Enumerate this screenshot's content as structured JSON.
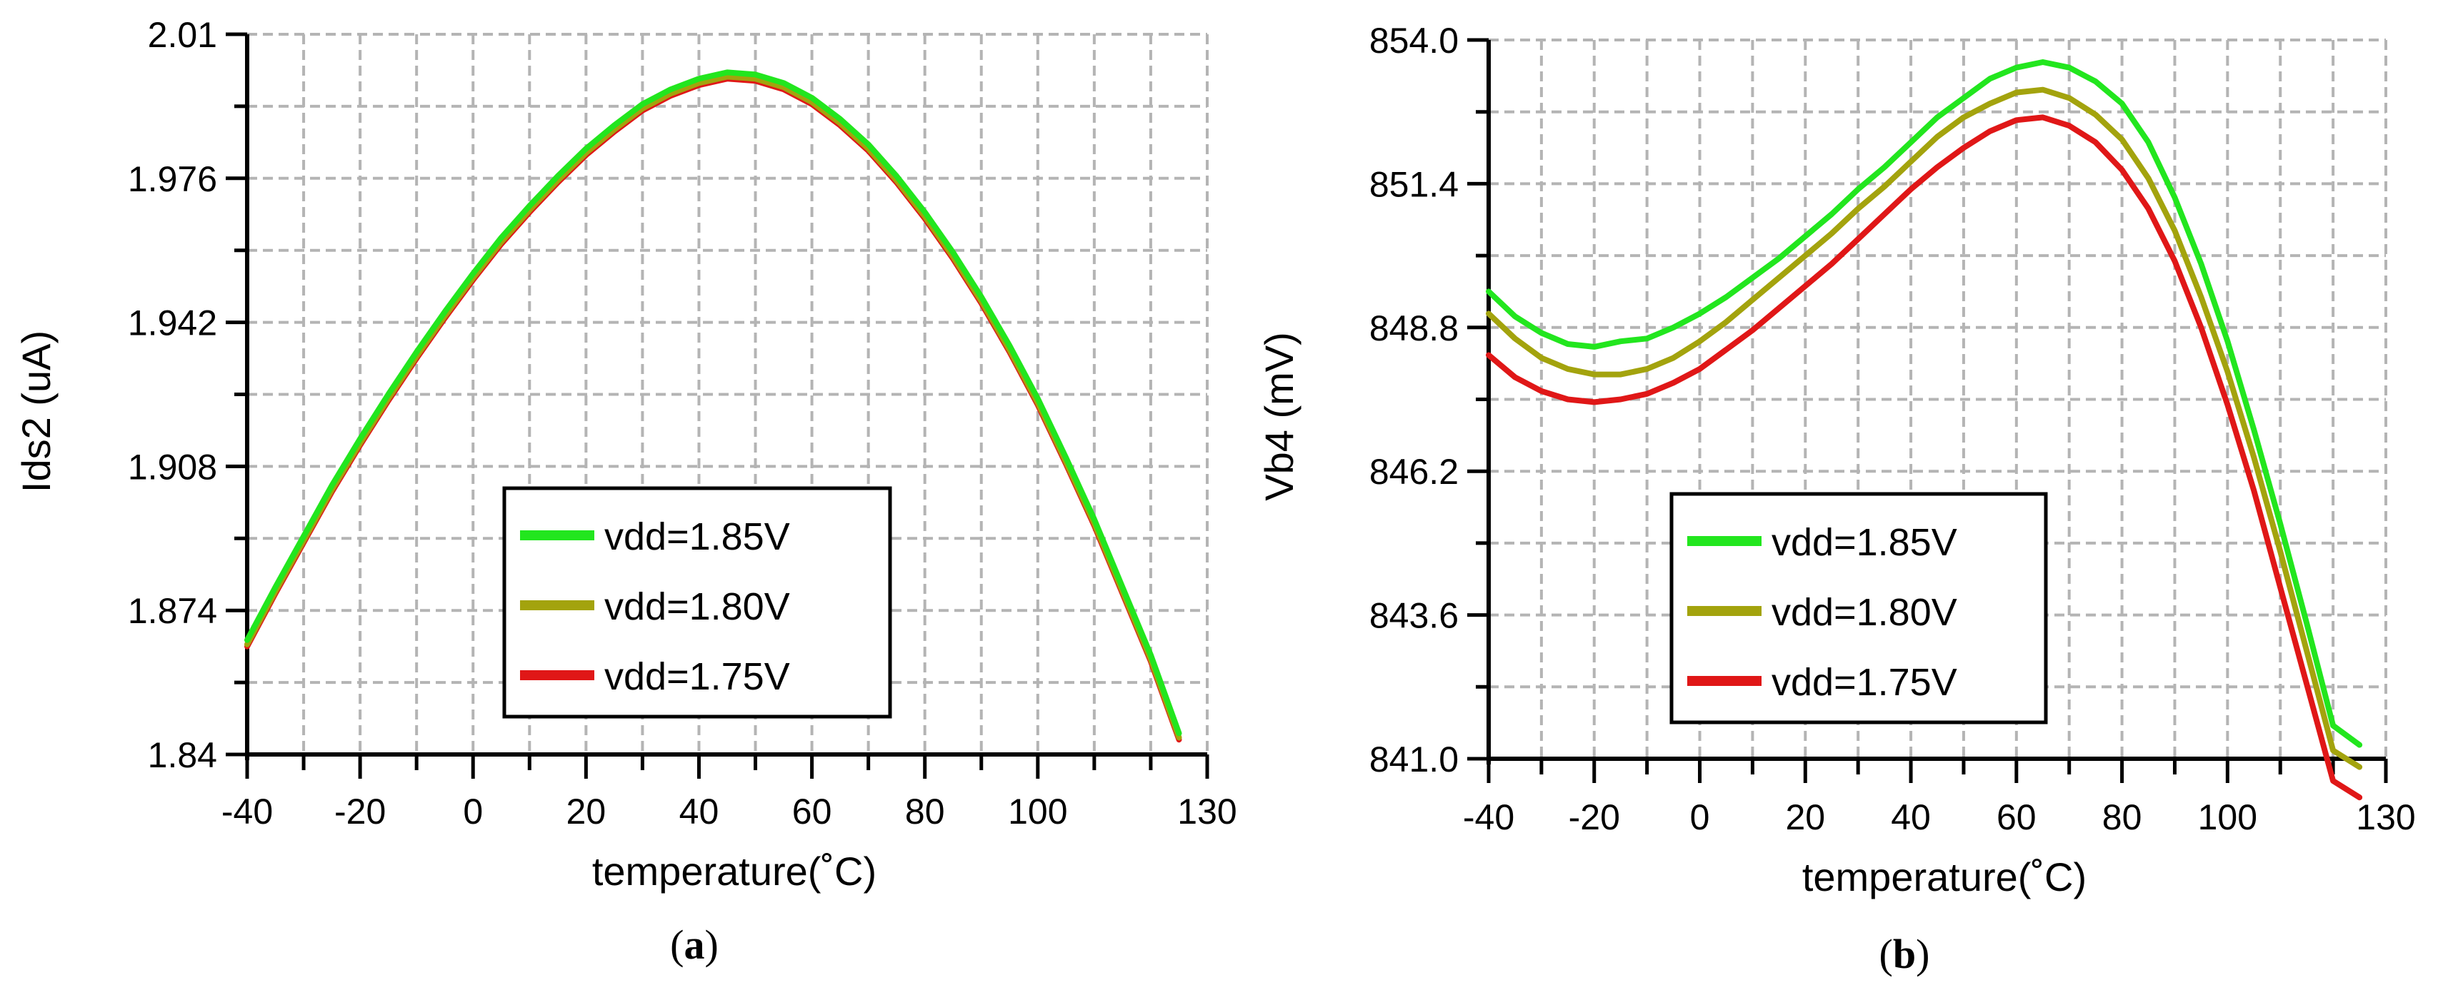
{
  "chart_data": [
    {
      "type": "line",
      "caption": {
        "open": "(",
        "letter": "a",
        "close": ")"
      },
      "xlabel": "temperature(˚C)",
      "ylabel": "Ids2 (uA)",
      "xlim": [
        -40,
        130
      ],
      "ylim": [
        1.84,
        2.01
      ],
      "x_ticks": [
        "-40",
        "-20",
        "0",
        "20",
        "40",
        "60",
        "80",
        "100",
        "130"
      ],
      "x_tick_values": [
        -40,
        -20,
        0,
        20,
        40,
        60,
        80,
        100,
        130
      ],
      "y_ticks": [
        "1.84",
        "1.874",
        "1.908",
        "1.942",
        "1.976",
        "2.01"
      ],
      "y_tick_values": [
        1.84,
        1.874,
        1.908,
        1.942,
        1.976,
        2.01
      ],
      "grid": true,
      "legend_position": "lower-center",
      "x": [
        -40,
        -35,
        -30,
        -25,
        -20,
        -15,
        -10,
        -5,
        0,
        5,
        10,
        15,
        20,
        25,
        30,
        35,
        40,
        45,
        50,
        55,
        60,
        65,
        70,
        75,
        80,
        85,
        90,
        95,
        100,
        105,
        110,
        115,
        120,
        125
      ],
      "series": [
        {
          "name": "vdd=1.85V",
          "color": "#22e61e",
          "values": [
            1.867,
            1.8795,
            1.8915,
            1.9035,
            1.9145,
            1.925,
            1.935,
            1.9445,
            1.9535,
            1.962,
            1.9695,
            1.9765,
            1.983,
            1.9885,
            1.9935,
            1.997,
            1.9995,
            2.001,
            2.0005,
            1.9985,
            1.995,
            1.99,
            1.984,
            1.9765,
            1.968,
            1.9585,
            1.948,
            1.9365,
            1.924,
            1.91,
            1.8955,
            1.8795,
            1.8635,
            1.845
          ]
        },
        {
          "name": "vdd=1.80V",
          "color": "#a3a30d",
          "values": [
            1.866,
            1.8785,
            1.8905,
            1.9025,
            1.9135,
            1.924,
            1.934,
            1.9435,
            1.9525,
            1.961,
            1.9685,
            1.9755,
            1.982,
            1.9875,
            1.9925,
            1.996,
            1.9985,
            2.0,
            1.9995,
            1.9975,
            1.994,
            1.989,
            1.983,
            1.9755,
            1.967,
            1.9575,
            1.947,
            1.9355,
            1.923,
            1.909,
            1.8945,
            1.8785,
            1.8625,
            1.844
          ]
        },
        {
          "name": "vdd=1.75V",
          "color": "#e01717",
          "values": [
            1.8655,
            1.878,
            1.89,
            1.902,
            1.913,
            1.9235,
            1.9335,
            1.943,
            1.952,
            1.9605,
            1.968,
            1.975,
            1.9815,
            1.987,
            1.992,
            1.9955,
            1.998,
            1.9995,
            1.999,
            1.997,
            1.9935,
            1.9885,
            1.9825,
            1.975,
            1.9665,
            1.957,
            1.9465,
            1.935,
            1.9225,
            1.9085,
            1.894,
            1.878,
            1.862,
            1.8435
          ]
        }
      ]
    },
    {
      "type": "line",
      "caption": {
        "open": "(",
        "letter": "b",
        "close": ")"
      },
      "xlabel": "temperature(˚C)",
      "ylabel": "Vb4 (mV)",
      "xlim": [
        -40,
        130
      ],
      "ylim": [
        841.0,
        854.0
      ],
      "x_ticks": [
        "-40",
        "-20",
        "0",
        "20",
        "40",
        "60",
        "80",
        "100",
        "130"
      ],
      "x_tick_values": [
        -40,
        -20,
        0,
        20,
        40,
        60,
        80,
        100,
        130
      ],
      "y_ticks": [
        "841.0",
        "843.6",
        "846.2",
        "848.8",
        "851.4",
        "854.0"
      ],
      "y_tick_values": [
        841.0,
        843.6,
        846.2,
        848.8,
        851.4,
        854.0
      ],
      "grid": true,
      "legend_position": "lower-center",
      "x": [
        -40,
        -35,
        -30,
        -25,
        -20,
        -15,
        -10,
        -5,
        0,
        5,
        10,
        15,
        20,
        25,
        30,
        35,
        40,
        45,
        50,
        55,
        60,
        65,
        70,
        75,
        80,
        85,
        90,
        95,
        100,
        105,
        110,
        115,
        120,
        125
      ],
      "series": [
        {
          "name": "vdd=1.85V",
          "color": "#22e61e",
          "values": [
            849.45,
            849.0,
            848.7,
            848.5,
            848.45,
            848.55,
            848.6,
            848.8,
            849.05,
            849.35,
            849.7,
            850.05,
            850.45,
            850.85,
            851.3,
            851.7,
            852.15,
            852.6,
            852.95,
            853.3,
            853.5,
            853.6,
            853.5,
            853.25,
            852.85,
            852.15,
            851.15,
            849.95,
            848.55,
            846.95,
            845.25,
            843.45,
            841.6,
            841.25
          ]
        },
        {
          "name": "vdd=1.80V",
          "color": "#a3a30d",
          "values": [
            849.05,
            848.6,
            848.25,
            848.05,
            847.95,
            847.95,
            848.05,
            848.25,
            848.55,
            848.9,
            849.3,
            849.7,
            850.1,
            850.5,
            850.95,
            851.35,
            851.8,
            852.25,
            852.6,
            852.85,
            853.05,
            853.1,
            852.95,
            852.65,
            852.2,
            851.5,
            850.55,
            849.35,
            848.0,
            846.45,
            844.75,
            842.95,
            841.15,
            840.85
          ]
        },
        {
          "name": "vdd=1.75V",
          "color": "#e01717",
          "values": [
            848.3,
            847.9,
            847.65,
            847.5,
            847.45,
            847.5,
            847.6,
            847.8,
            848.05,
            848.4,
            848.75,
            849.15,
            849.55,
            849.95,
            850.4,
            850.85,
            851.3,
            851.7,
            852.05,
            852.35,
            852.55,
            852.6,
            852.45,
            852.15,
            851.65,
            850.95,
            850.0,
            848.8,
            847.4,
            845.85,
            844.1,
            842.35,
            840.6,
            840.3
          ]
        }
      ]
    }
  ]
}
